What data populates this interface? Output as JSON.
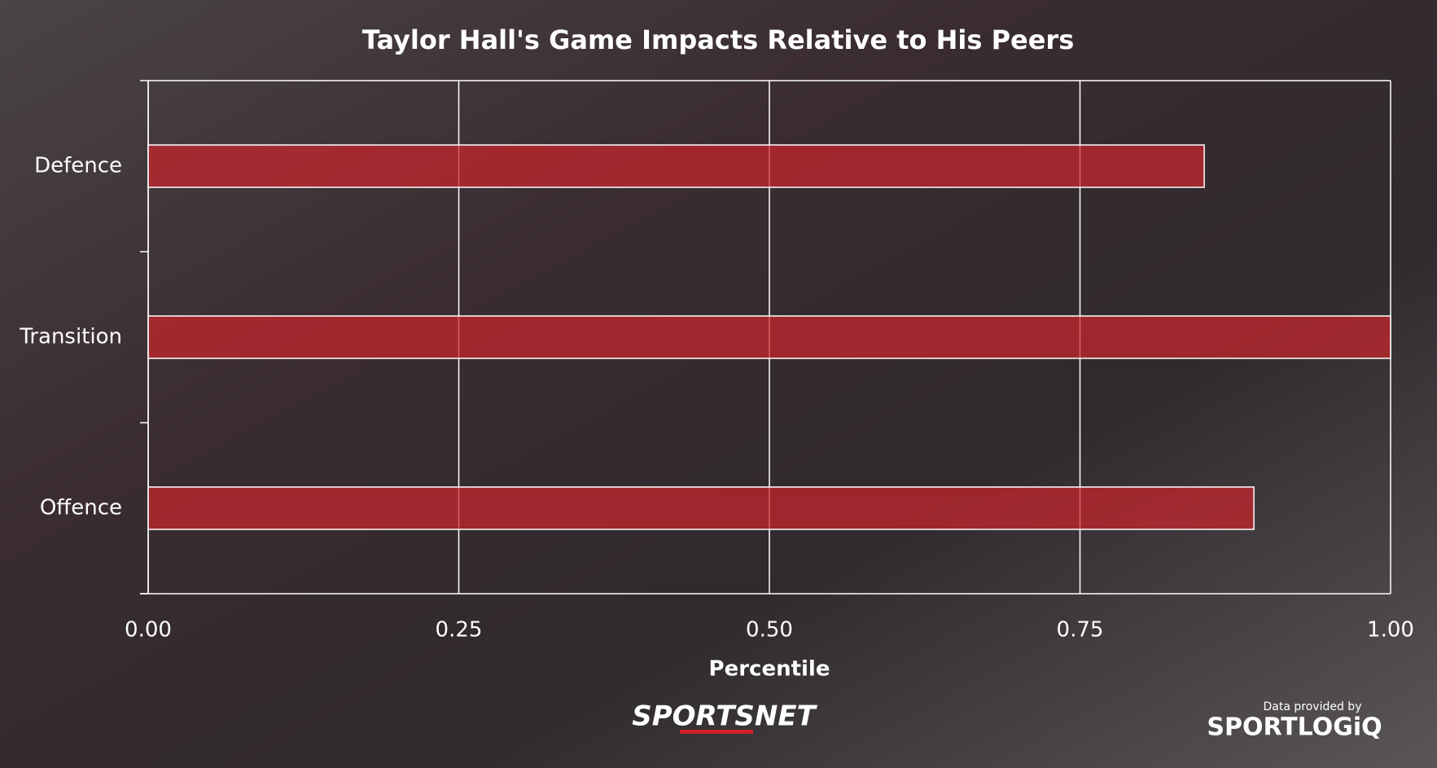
{
  "chart_data": {
    "type": "bar",
    "orientation": "horizontal",
    "title": "Taylor Hall's Game Impacts Relative to His Peers",
    "x_label": "Percentile",
    "categories": [
      "Defence",
      "Transition",
      "Offence"
    ],
    "values": [
      0.85,
      1.0,
      0.89
    ],
    "color": "#c9252c",
    "xlim": [
      0,
      1
    ],
    "xticks": [
      {
        "value": 0,
        "label": "0.00"
      },
      {
        "value": 0.25,
        "label": "0.25"
      },
      {
        "value": 0.5,
        "label": "0.50"
      },
      {
        "value": 0.75,
        "label": "0.75"
      },
      {
        "value": 1,
        "label": "1.00"
      }
    ],
    "grid": true
  },
  "branding": {
    "network": "SPORTSNET",
    "credit": "Data provided by",
    "provider": "SPORTLOGiQ"
  }
}
